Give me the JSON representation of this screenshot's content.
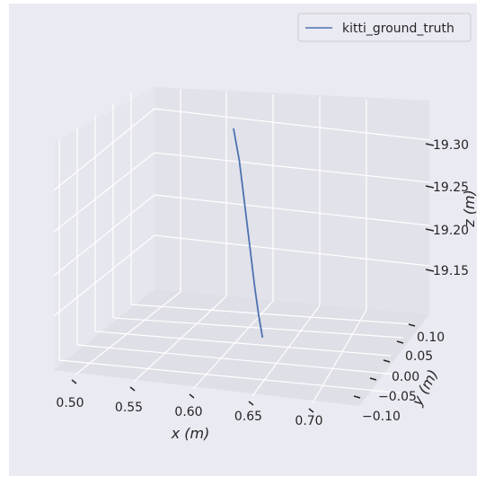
{
  "chart_data": {
    "type": "line",
    "projection": "3d",
    "xlabel": "x (m)",
    "ylabel": "y (m)",
    "zlabel": "z (m)",
    "x_ticks": [
      "0.50",
      "0.55",
      "0.60",
      "0.65",
      "0.70"
    ],
    "y_ticks": [
      "−0.10",
      "−0.05",
      "0.00",
      "0.05",
      "0.10"
    ],
    "z_ticks": [
      "19.15",
      "19.20",
      "19.25",
      "19.30"
    ],
    "legend_position": "top-right",
    "grid": true,
    "series": [
      {
        "name": "kitti_ground_truth",
        "color": "#4c72b0",
        "points": [
          {
            "x": 0.62,
            "y": 0.0,
            "z": 19.32
          },
          {
            "x": 0.623,
            "y": 0.0,
            "z": 19.285
          },
          {
            "x": 0.625,
            "y": 0.0,
            "z": 19.25
          },
          {
            "x": 0.627,
            "y": 0.0,
            "z": 19.215
          },
          {
            "x": 0.629,
            "y": 0.0,
            "z": 19.18
          },
          {
            "x": 0.631,
            "y": 0.0,
            "z": 19.145
          },
          {
            "x": 0.633,
            "y": 0.0,
            "z": 19.115
          },
          {
            "x": 0.635,
            "y": 0.0,
            "z": 19.09
          }
        ]
      }
    ]
  }
}
